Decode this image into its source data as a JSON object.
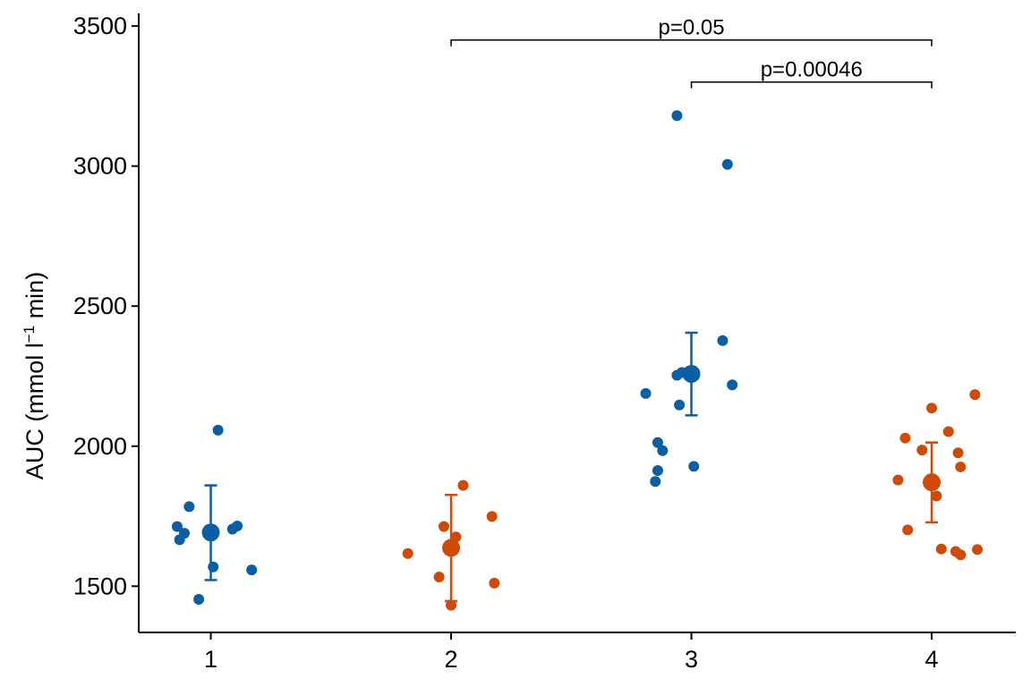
{
  "chart_data": {
    "type": "scatter",
    "title": "",
    "xlabel": "",
    "ylabel": {
      "base": "AUC (mmol l",
      "sup": "−1",
      "tail": " min)"
    },
    "ylim": [
      1335,
      3545
    ],
    "xlim": [
      0.7,
      4.35
    ],
    "x_ticks": [
      1,
      2,
      3,
      4
    ],
    "x_tick_labels": [
      "1",
      "2",
      "3",
      "4"
    ],
    "y_ticks": [
      1500,
      2000,
      2500,
      3000,
      3500
    ],
    "y_tick_labels": [
      "1500",
      "2000",
      "2500",
      "3000",
      "3500"
    ],
    "grid": false,
    "legend": "none",
    "colors": {
      "blue": "#0a5ea4",
      "orange": "#cf4a07"
    },
    "groups": [
      {
        "x": 1,
        "color": "blue",
        "mean": 1692,
        "err_low": 1522,
        "err_high": 1860,
        "points": [
          {
            "x": 0.86,
            "y": 1713
          },
          {
            "x": 0.87,
            "y": 1666
          },
          {
            "x": 0.89,
            "y": 1689
          },
          {
            "x": 0.91,
            "y": 1784
          },
          {
            "x": 0.95,
            "y": 1453
          },
          {
            "x": 1.01,
            "y": 1569
          },
          {
            "x": 1.03,
            "y": 2057
          },
          {
            "x": 1.09,
            "y": 1704
          },
          {
            "x": 1.11,
            "y": 1715
          },
          {
            "x": 1.17,
            "y": 1558
          }
        ]
      },
      {
        "x": 2,
        "color": "orange",
        "mean": 1637,
        "err_low": 1447,
        "err_high": 1826,
        "points": [
          {
            "x": 1.82,
            "y": 1617
          },
          {
            "x": 1.95,
            "y": 1533
          },
          {
            "x": 1.97,
            "y": 1713
          },
          {
            "x": 2.0,
            "y": 1432
          },
          {
            "x": 2.02,
            "y": 1676
          },
          {
            "x": 2.05,
            "y": 1860
          },
          {
            "x": 2.17,
            "y": 1749
          },
          {
            "x": 2.18,
            "y": 1511
          }
        ]
      },
      {
        "x": 3,
        "color": "blue",
        "mean": 2258,
        "err_low": 2110,
        "err_high": 2405,
        "points": [
          {
            "x": 2.81,
            "y": 2188
          },
          {
            "x": 2.85,
            "y": 1874
          },
          {
            "x": 2.86,
            "y": 1913
          },
          {
            "x": 2.86,
            "y": 2013
          },
          {
            "x": 2.88,
            "y": 1984
          },
          {
            "x": 2.94,
            "y": 3180
          },
          {
            "x": 2.94,
            "y": 2253
          },
          {
            "x": 2.95,
            "y": 2147
          },
          {
            "x": 2.96,
            "y": 2263
          },
          {
            "x": 3.01,
            "y": 1928
          },
          {
            "x": 3.13,
            "y": 2377
          },
          {
            "x": 3.15,
            "y": 3006
          },
          {
            "x": 3.17,
            "y": 2219
          }
        ]
      },
      {
        "x": 4,
        "color": "orange",
        "mean": 1871,
        "err_low": 1728,
        "err_high": 2013,
        "points": [
          {
            "x": 3.86,
            "y": 1879
          },
          {
            "x": 3.89,
            "y": 2029
          },
          {
            "x": 3.9,
            "y": 1701
          },
          {
            "x": 3.96,
            "y": 1986
          },
          {
            "x": 4.0,
            "y": 2136
          },
          {
            "x": 4.02,
            "y": 1822
          },
          {
            "x": 4.04,
            "y": 1633
          },
          {
            "x": 4.07,
            "y": 2052
          },
          {
            "x": 4.1,
            "y": 1624
          },
          {
            "x": 4.11,
            "y": 1976
          },
          {
            "x": 4.12,
            "y": 1926
          },
          {
            "x": 4.12,
            "y": 1612
          },
          {
            "x": 4.18,
            "y": 2184
          },
          {
            "x": 4.19,
            "y": 1631
          }
        ]
      }
    ],
    "comparisons": [
      {
        "x1": 2,
        "x2": 4,
        "y": 3450,
        "label": "p=0.05"
      },
      {
        "x1": 3,
        "x2": 4,
        "y": 3300,
        "label": "p=0.00046"
      }
    ]
  }
}
